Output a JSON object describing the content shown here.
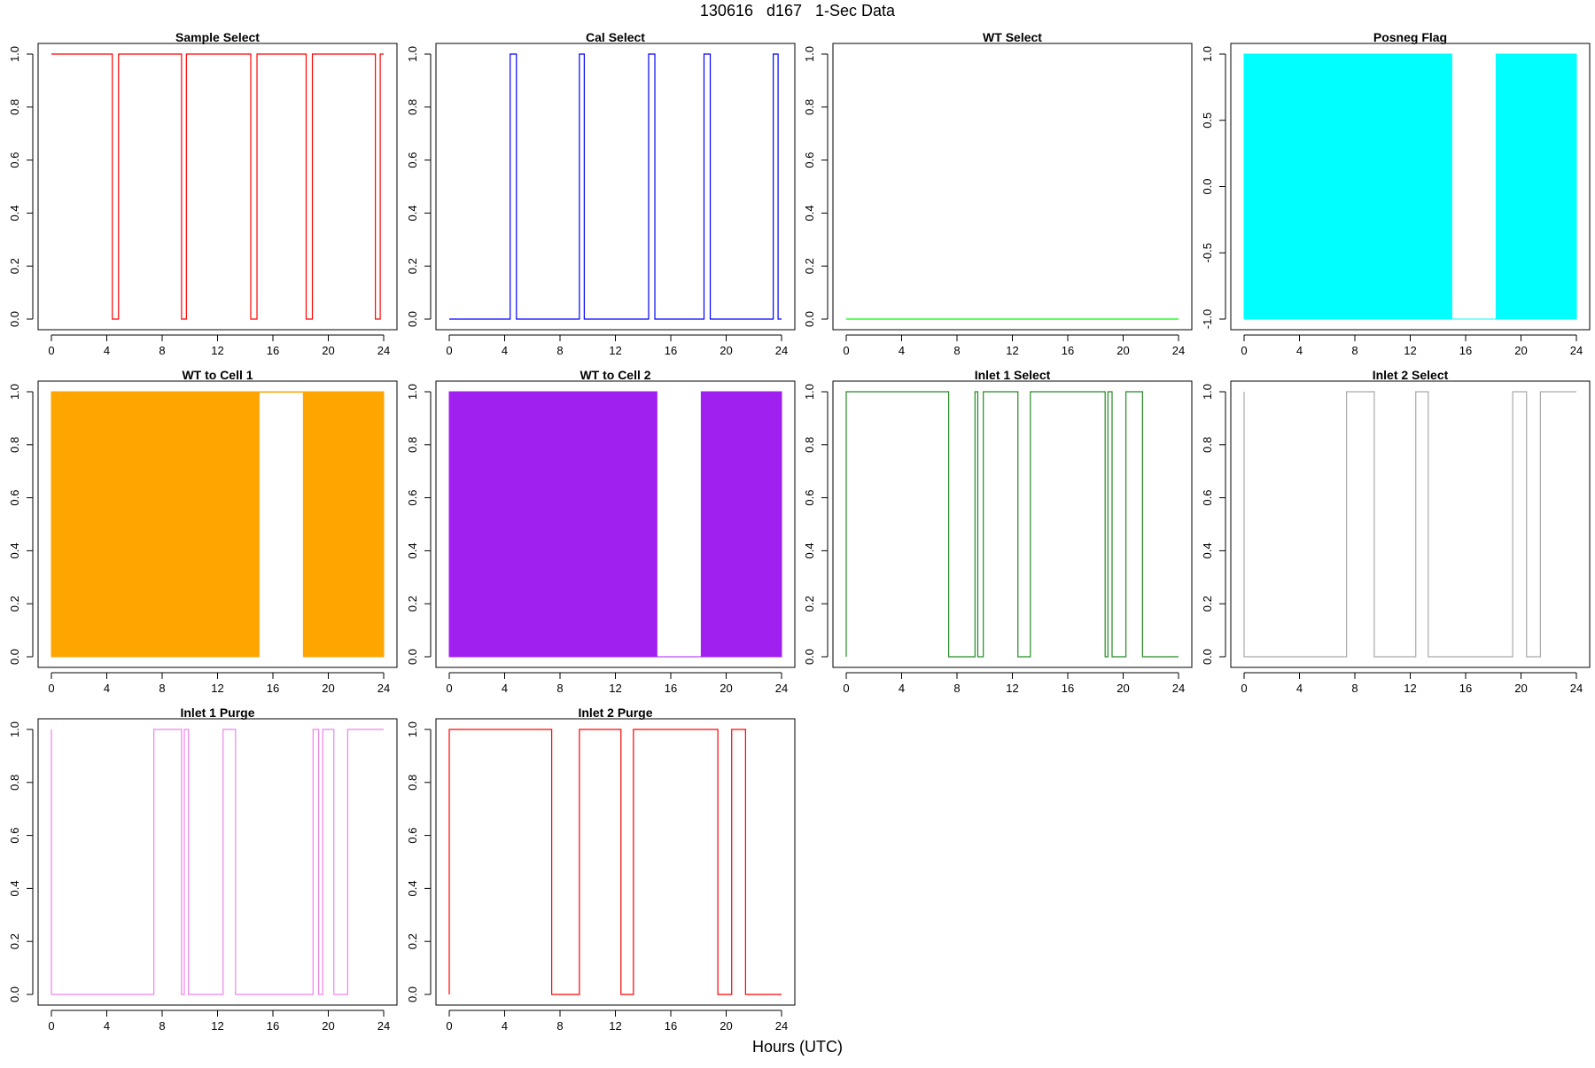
{
  "figure": {
    "title": "130616   d167   1-Sec Data",
    "xlabel": "Hours (UTC)"
  },
  "chart_data": [
    {
      "type": "line",
      "title": "Sample Select",
      "color": "#ff0000",
      "xlim": [
        0,
        24
      ],
      "xticks": [
        0,
        4,
        8,
        12,
        16,
        20,
        24
      ],
      "ylim": [
        0,
        1
      ],
      "yticks": [
        "0.0",
        "0.2",
        "0.4",
        "0.6",
        "0.8",
        "1.0"
      ],
      "x": [
        0,
        4.4,
        4.4,
        4.85,
        4.85,
        9.4,
        9.4,
        9.75,
        9.75,
        14.4,
        14.4,
        14.85,
        14.85,
        18.4,
        18.4,
        18.85,
        18.85,
        23.4,
        23.4,
        23.75,
        23.75,
        24
      ],
      "y": [
        1,
        1,
        0,
        0,
        1,
        1,
        0,
        0,
        1,
        1,
        0,
        0,
        1,
        1,
        0,
        0,
        1,
        1,
        0,
        0,
        1,
        1
      ]
    },
    {
      "type": "line",
      "title": "Cal Select",
      "color": "#0000ff",
      "xlim": [
        0,
        24
      ],
      "xticks": [
        0,
        4,
        8,
        12,
        16,
        20,
        24
      ],
      "ylim": [
        0,
        1
      ],
      "yticks": [
        "0.0",
        "0.2",
        "0.4",
        "0.6",
        "0.8",
        "1.0"
      ],
      "x": [
        0,
        4.4,
        4.4,
        4.85,
        4.85,
        9.4,
        9.4,
        9.75,
        9.75,
        14.4,
        14.4,
        14.85,
        14.85,
        18.4,
        18.4,
        18.85,
        18.85,
        23.4,
        23.4,
        23.75,
        23.75,
        24
      ],
      "y": [
        0,
        0,
        1,
        1,
        0,
        0,
        1,
        1,
        0,
        0,
        1,
        1,
        0,
        0,
        1,
        1,
        0,
        0,
        1,
        1,
        0,
        0
      ]
    },
    {
      "type": "line",
      "title": "WT Select",
      "color": "#00ff00",
      "xlim": [
        0,
        24
      ],
      "xticks": [
        0,
        4,
        8,
        12,
        16,
        20,
        24
      ],
      "ylim": [
        0,
        1
      ],
      "yticks": [
        "0.0",
        "0.2",
        "0.4",
        "0.6",
        "0.8",
        "1.0"
      ],
      "x": [
        0,
        24
      ],
      "y": [
        0,
        0
      ]
    },
    {
      "type": "area",
      "title": "Posneg Flag",
      "color": "#00ffff",
      "xlim": [
        0,
        24
      ],
      "xticks": [
        0,
        4,
        8,
        12,
        16,
        20,
        24
      ],
      "ylim": [
        -1,
        1
      ],
      "yticks": [
        "-1.0",
        "-0.5",
        "0.0",
        "0.5",
        "1.0"
      ],
      "baseline": -1,
      "x": [
        0,
        15,
        15,
        18.2,
        18.2,
        24
      ],
      "y": [
        1,
        1,
        -1,
        -1,
        1,
        1
      ]
    },
    {
      "type": "area",
      "title": "WT to Cell 1",
      "color": "#ffa500",
      "xlim": [
        0,
        24
      ],
      "xticks": [
        0,
        4,
        8,
        12,
        16,
        20,
        24
      ],
      "ylim": [
        0,
        1
      ],
      "yticks": [
        "0.0",
        "0.2",
        "0.4",
        "0.6",
        "0.8",
        "1.0"
      ],
      "baseline": 0,
      "x": [
        0,
        15,
        15,
        18.2,
        18.2,
        24
      ],
      "y": [
        1,
        1,
        1,
        1,
        1,
        1
      ],
      "gaps": [
        [
          15,
          18.2
        ]
      ]
    },
    {
      "type": "area",
      "title": "WT to Cell 2",
      "color": "#a020f0",
      "xlim": [
        0,
        24
      ],
      "xticks": [
        0,
        4,
        8,
        12,
        16,
        20,
        24
      ],
      "ylim": [
        0,
        1
      ],
      "yticks": [
        "0.0",
        "0.2",
        "0.4",
        "0.6",
        "0.8",
        "1.0"
      ],
      "baseline": 0,
      "x": [
        0,
        15,
        15,
        18.2,
        18.2,
        24
      ],
      "y": [
        1,
        1,
        0,
        0,
        1,
        1
      ]
    },
    {
      "type": "line",
      "title": "Inlet 1 Select",
      "color": "#228b22",
      "xlim": [
        0,
        24
      ],
      "xticks": [
        0,
        4,
        8,
        12,
        16,
        20,
        24
      ],
      "ylim": [
        0,
        1
      ],
      "yticks": [
        "0.0",
        "0.2",
        "0.4",
        "0.6",
        "0.8",
        "1.0"
      ],
      "x": [
        0,
        0,
        7.4,
        7.4,
        9.3,
        9.3,
        9.5,
        9.5,
        9.9,
        9.9,
        12.4,
        12.4,
        13.3,
        13.3,
        18.7,
        18.7,
        18.9,
        18.9,
        19.2,
        19.2,
        20.2,
        20.2,
        21.4,
        21.4,
        24
      ],
      "y": [
        0,
        1,
        1,
        0,
        0,
        1,
        1,
        0,
        0,
        1,
        1,
        0,
        0,
        1,
        1,
        0,
        0,
        1,
        1,
        0,
        0,
        1,
        1,
        0,
        0
      ]
    },
    {
      "type": "line",
      "title": "Inlet 2 Select",
      "color": "#a9a9a9",
      "xlim": [
        0,
        24
      ],
      "xticks": [
        0,
        4,
        8,
        12,
        16,
        20,
        24
      ],
      "ylim": [
        0,
        1
      ],
      "yticks": [
        "0.0",
        "0.2",
        "0.4",
        "0.6",
        "0.8",
        "1.0"
      ],
      "x": [
        0,
        0,
        7.4,
        7.4,
        9.4,
        9.4,
        12.4,
        12.4,
        13.3,
        13.3,
        19.4,
        19.4,
        20.4,
        20.4,
        21.4,
        21.4,
        24
      ],
      "y": [
        1,
        0,
        0,
        1,
        1,
        0,
        0,
        1,
        1,
        0,
        0,
        1,
        1,
        0,
        0,
        1,
        1
      ]
    },
    {
      "type": "line",
      "title": "Inlet 1 Purge",
      "color": "#ee82ee",
      "xlim": [
        0,
        24
      ],
      "xticks": [
        0,
        4,
        8,
        12,
        16,
        20,
        24
      ],
      "ylim": [
        0,
        1
      ],
      "yticks": [
        "0.0",
        "0.2",
        "0.4",
        "0.6",
        "0.8",
        "1.0"
      ],
      "x": [
        0,
        0,
        7.4,
        7.4,
        9.4,
        9.4,
        9.6,
        9.6,
        9.9,
        9.9,
        12.4,
        12.4,
        13.3,
        13.3,
        18.9,
        18.9,
        19.3,
        19.3,
        19.6,
        19.6,
        20.4,
        20.4,
        21.4,
        21.4,
        24
      ],
      "y": [
        1,
        0,
        0,
        1,
        1,
        0,
        0,
        1,
        1,
        0,
        0,
        1,
        1,
        0,
        0,
        1,
        1,
        0,
        0,
        1,
        1,
        0,
        0,
        1,
        1
      ]
    },
    {
      "type": "line",
      "title": "Inlet 2 Purge",
      "color": "#ff0000",
      "xlim": [
        0,
        24
      ],
      "xticks": [
        0,
        4,
        8,
        12,
        16,
        20,
        24
      ],
      "ylim": [
        0,
        1
      ],
      "yticks": [
        "0.0",
        "0.2",
        "0.4",
        "0.6",
        "0.8",
        "1.0"
      ],
      "x": [
        0,
        0,
        7.4,
        7.4,
        9.4,
        9.4,
        12.4,
        12.4,
        13.3,
        13.3,
        19.4,
        19.4,
        20.4,
        20.4,
        21.4,
        21.4,
        24
      ],
      "y": [
        0,
        1,
        1,
        0,
        0,
        1,
        1,
        0,
        0,
        1,
        1,
        0,
        0,
        1,
        1,
        0,
        0
      ]
    }
  ]
}
